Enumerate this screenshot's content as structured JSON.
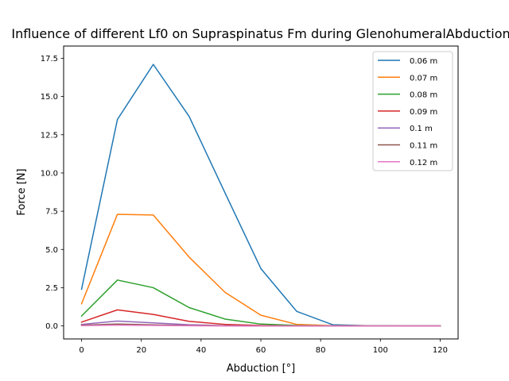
{
  "chart_data": {
    "type": "line",
    "title": "Influence of different Lf0 on Supraspinatus Fm during GlenohumeralAbduction",
    "xlabel": "Abduction [°]",
    "ylabel": "Force [N]",
    "xlim": [
      -6,
      126
    ],
    "ylim": [
      -0.85,
      18.3
    ],
    "xticks": [
      0,
      20,
      40,
      60,
      80,
      100,
      120
    ],
    "xtick_labels": [
      "0",
      "20",
      "40",
      "60",
      "80",
      "100",
      "120"
    ],
    "yticks": [
      0,
      2.5,
      5,
      7.5,
      10,
      12.5,
      15,
      17.5
    ],
    "ytick_labels": [
      "0.0",
      "2.5",
      "5.0",
      "7.5",
      "10.0",
      "12.5",
      "15.0",
      "17.5"
    ],
    "grid": false,
    "legend_position": "top-right",
    "x": [
      0,
      12,
      24,
      36,
      48,
      60,
      72,
      84,
      96,
      108,
      120
    ],
    "series": [
      {
        "name": "0.06 m",
        "color": "#1f77b4",
        "values": [
          2.4,
          13.5,
          17.1,
          13.7,
          8.7,
          3.75,
          0.95,
          0.08,
          0.01,
          0.0,
          0.0
        ]
      },
      {
        "name": "0.07 m",
        "color": "#ff7f0e",
        "values": [
          1.45,
          7.3,
          7.25,
          4.5,
          2.2,
          0.7,
          0.1,
          0.02,
          0.0,
          0.0,
          0.0
        ]
      },
      {
        "name": "0.08 m",
        "color": "#2ca02c",
        "values": [
          0.65,
          3.0,
          2.5,
          1.2,
          0.45,
          0.12,
          0.03,
          0.0,
          0.0,
          0.0,
          0.0
        ]
      },
      {
        "name": "0.09 m",
        "color": "#d62728",
        "values": [
          0.25,
          1.05,
          0.75,
          0.3,
          0.1,
          0.03,
          0.0,
          0.0,
          0.0,
          0.0,
          0.0
        ]
      },
      {
        "name": "0.1 m",
        "color": "#9467bd",
        "values": [
          0.1,
          0.32,
          0.2,
          0.08,
          0.02,
          0.0,
          0.0,
          0.0,
          0.0,
          0.0,
          0.0
        ]
      },
      {
        "name": "0.11 m",
        "color": "#8c564b",
        "values": [
          0.05,
          0.12,
          0.07,
          0.03,
          0.01,
          0.0,
          0.0,
          0.0,
          0.0,
          0.0,
          0.0
        ]
      },
      {
        "name": "0.12 m",
        "color": "#e377c2",
        "values": [
          0.02,
          0.05,
          0.03,
          0.01,
          0.0,
          0.0,
          0.0,
          0.0,
          0.0,
          0.0,
          0.0
        ]
      }
    ]
  }
}
